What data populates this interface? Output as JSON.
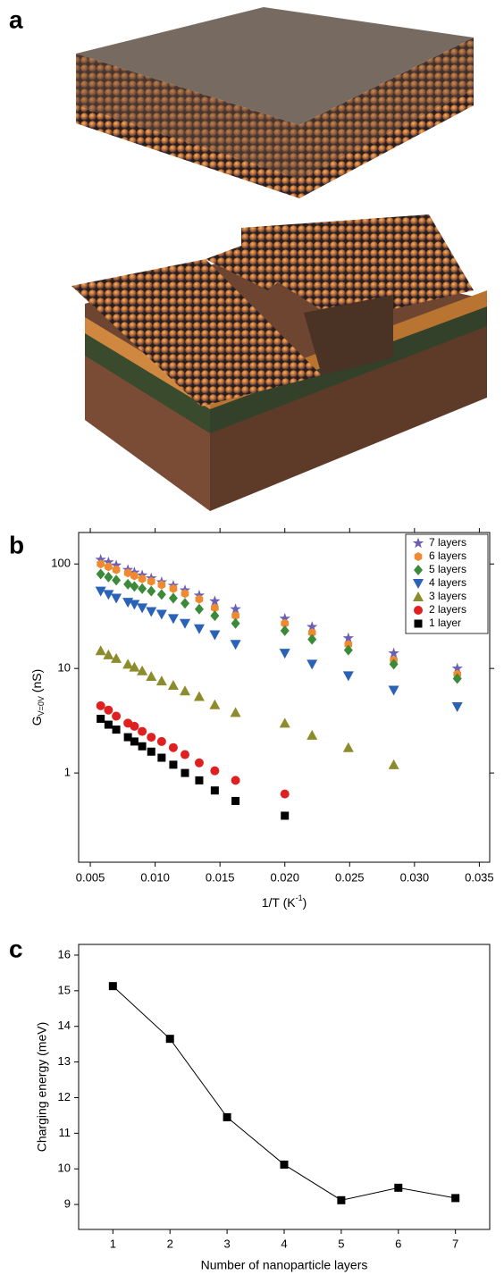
{
  "panel_labels": [
    "a",
    "b",
    "c"
  ],
  "chart_data": [
    {
      "type": "scatter",
      "xlabel": {
        "main": "1/T (K",
        "sup": "-1",
        "rest": ")"
      },
      "ylabel": {
        "main": "G",
        "sub": "V=0V",
        "rest": " (nS)"
      },
      "log_y": true,
      "legend": "upper right",
      "xlim": [
        0.0041,
        0.0358
      ],
      "ylim": [
        0.14,
        200
      ],
      "xticks": [
        0.005,
        {
          "value": 0.01,
          "label": "0.010"
        },
        0.015,
        {
          "value": 0.02,
          "label": "0.020"
        },
        0.025,
        {
          "value": 0.03,
          "label": "0.030"
        },
        0.035
      ],
      "yticks": [
        1,
        10,
        100
      ],
      "x": [
        0.0058,
        0.0064,
        0.007,
        0.0079,
        0.0084,
        0.009,
        0.0097,
        0.0105,
        0.0114,
        0.0123,
        0.0134,
        0.0146,
        0.0162,
        0.02,
        0.0221,
        0.0249,
        0.0284,
        0.0333
      ],
      "series": [
        {
          "name": "7 layers",
          "color": "#6b5fb5",
          "marker": "star",
          "values": [
            110,
            104,
            97,
            88,
            83,
            78,
            73,
            67,
            62,
            56,
            50,
            44,
            37,
            30,
            25,
            19.5,
            14,
            10
          ]
        },
        {
          "name": "6 layers",
          "color": "#f08a30",
          "marker": "hexagon",
          "values": [
            100,
            94,
            88,
            82,
            77,
            72,
            68,
            63,
            58,
            52,
            46,
            38,
            32,
            27,
            22,
            17,
            12,
            8.8
          ]
        },
        {
          "name": "5 layers",
          "color": "#3a8a3a",
          "marker": "diamond",
          "values": [
            80,
            75,
            70,
            64,
            61,
            58,
            55,
            51,
            47,
            42,
            37,
            32,
            27,
            23,
            19,
            15,
            11,
            8
          ]
        },
        {
          "name": "4 layers",
          "color": "#2a62b8",
          "marker": "triangle-down",
          "values": [
            55,
            51,
            47,
            43,
            41,
            38,
            35,
            33,
            30,
            27,
            24,
            21,
            17,
            14,
            11,
            8.5,
            6.2,
            4.3
          ]
        },
        {
          "name": "3 layers",
          "color": "#8c8c2c",
          "marker": "triangle-up",
          "values": [
            14.8,
            13.5,
            12.5,
            11,
            10.3,
            9.5,
            8.4,
            7.6,
            6.9,
            6.1,
            5.4,
            4.5,
            3.8,
            3.0,
            2.3,
            1.75,
            1.2,
            null
          ]
        },
        {
          "name": "2 layers",
          "color": "#e02020",
          "marker": "circle",
          "values": [
            4.4,
            4.0,
            3.5,
            3.0,
            2.8,
            2.5,
            2.2,
            2.0,
            1.75,
            1.5,
            1.25,
            1.05,
            0.85,
            0.63,
            null,
            null,
            null,
            null
          ]
        },
        {
          "name": "1 layer",
          "color": "#000000",
          "marker": "square",
          "values": [
            3.3,
            2.9,
            2.6,
            2.2,
            2.0,
            1.8,
            1.6,
            1.4,
            1.2,
            1.0,
            0.85,
            0.68,
            0.54,
            0.39,
            null,
            null,
            null,
            null
          ]
        }
      ]
    },
    {
      "type": "line",
      "xlabel": "Number of nanoparticle layers",
      "ylabel": "Charging energy (meV)",
      "color": "#000000",
      "marker": "square",
      "x": [
        1,
        2,
        3,
        4,
        5,
        6,
        7
      ],
      "values": [
        15.13,
        13.65,
        11.45,
        10.12,
        9.12,
        9.47,
        9.18
      ],
      "xlim": [
        0.4,
        7.6
      ],
      "ylim": [
        8.3,
        16.3
      ],
      "xticks": [
        1,
        2,
        3,
        4,
        5,
        6,
        7
      ],
      "yticks": [
        9,
        10,
        11,
        12,
        13,
        14,
        15,
        16
      ]
    }
  ]
}
